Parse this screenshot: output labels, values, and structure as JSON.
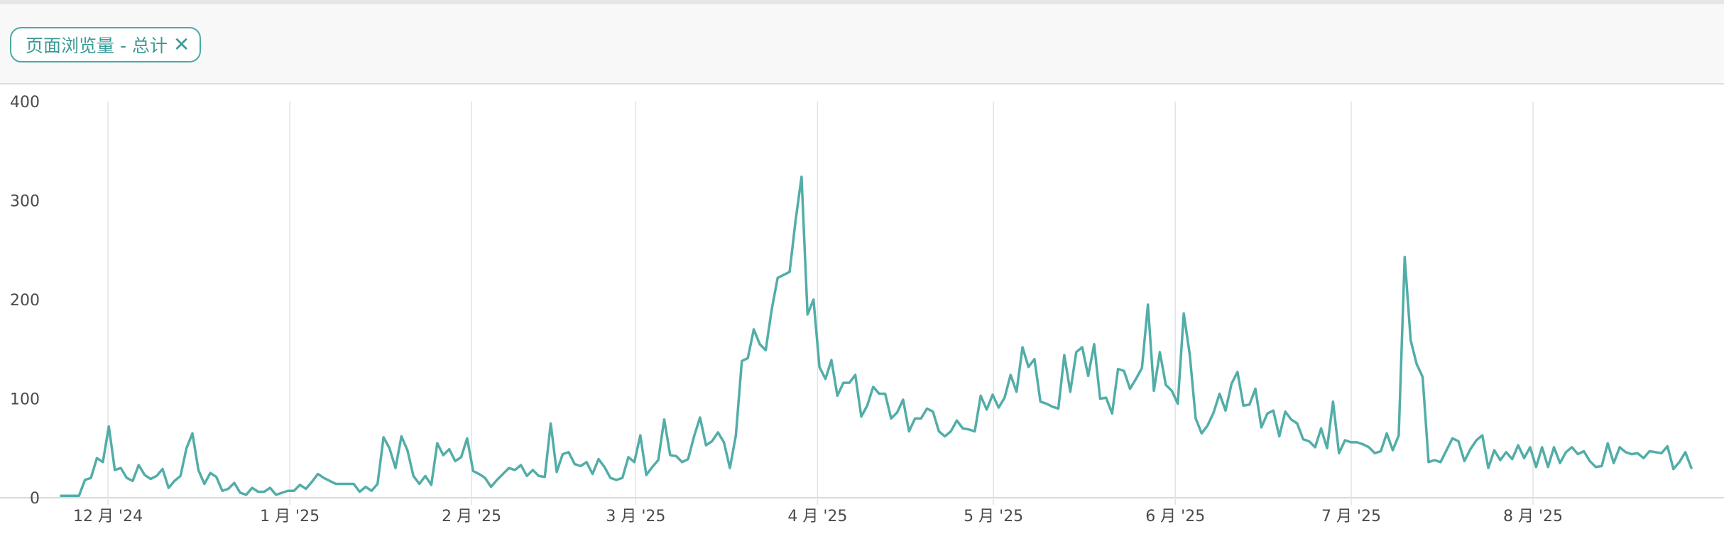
{
  "filter": {
    "label": "页面浏览量 - 总计",
    "close_icon": "close-icon"
  },
  "colors": {
    "line": "#52ada8",
    "grid": "#e3e3e6",
    "axis_text": "#4a4a4a",
    "chip": "#3b9a95"
  },
  "chart_data": {
    "type": "line",
    "title": "",
    "xlabel": "",
    "ylabel": "",
    "ylim": [
      0,
      400
    ],
    "yticks": [
      0,
      100,
      200,
      300,
      400
    ],
    "ytick_labels": [
      "0",
      "100",
      "200",
      "300",
      "400"
    ],
    "x_start": "2024-11-23",
    "x_end": "2025-08-28",
    "xtick_dates": [
      "2024-12-01",
      "2025-01-01",
      "2025-02-01",
      "2025-03-01",
      "2025-04-01",
      "2025-05-01",
      "2025-06-01",
      "2025-07-01",
      "2025-08-01"
    ],
    "xtick_labels": [
      "12 月 '24",
      "1 月 '25",
      "2 月 '25",
      "3 月 '25",
      "4 月 '25",
      "5 月 '25",
      "6 月 '25",
      "7 月 '25",
      "8 月 '25"
    ],
    "grid": "vertical at x ticks",
    "legend": "none",
    "series": [
      {
        "values": [
          2,
          2,
          2,
          2,
          18,
          20,
          40,
          36,
          72,
          28,
          30,
          20,
          17,
          33,
          23,
          19,
          22,
          29,
          10,
          17,
          22,
          50,
          65,
          28,
          14,
          25,
          21,
          7,
          9,
          15,
          5,
          3,
          10,
          6,
          6,
          10,
          3,
          5,
          7,
          7,
          13,
          9,
          16,
          24,
          20,
          17,
          14,
          14,
          14,
          14,
          6,
          11,
          7,
          14,
          61,
          50,
          30,
          62,
          48,
          22,
          14,
          22,
          13,
          55,
          43,
          49,
          37,
          41,
          60,
          27,
          24,
          20,
          11,
          18,
          24,
          30,
          28,
          33,
          22,
          28,
          22,
          21,
          75,
          26,
          44,
          46,
          34,
          32,
          36,
          24,
          39,
          31,
          20,
          18,
          20,
          41,
          36,
          63,
          23,
          31,
          38,
          79,
          43,
          42,
          36,
          39,
          62,
          81,
          53,
          57,
          66,
          56,
          30,
          63,
          138,
          141,
          170,
          155,
          149,
          190,
          222,
          225,
          228,
          280,
          324,
          185,
          200,
          132,
          120,
          139,
          103,
          116,
          116,
          124,
          82,
          93,
          112,
          105,
          105,
          80,
          86,
          99,
          67,
          80,
          80,
          90,
          87,
          67,
          62,
          67,
          78,
          70,
          69,
          67,
          103,
          89,
          104,
          91,
          101,
          124,
          107,
          152,
          132,
          140,
          97,
          95,
          92,
          90,
          144,
          107,
          147,
          152,
          123,
          155,
          100,
          101,
          85,
          130,
          128,
          110,
          120,
          131,
          195,
          108,
          147,
          114,
          108,
          95,
          186,
          145,
          80,
          65,
          73,
          86,
          105,
          88,
          115,
          127,
          93,
          94,
          110,
          71,
          85,
          88,
          62,
          87,
          79,
          75,
          59,
          57,
          51,
          70,
          50,
          97,
          45,
          58,
          56,
          56,
          54,
          51,
          45,
          47,
          65,
          48,
          63,
          243,
          159,
          135,
          122,
          36,
          38,
          36,
          48,
          60,
          57,
          37,
          49,
          58,
          63,
          30,
          48,
          38,
          46,
          39,
          53,
          40,
          51,
          31,
          51,
          31,
          51,
          35,
          46,
          51,
          44,
          47,
          37,
          31,
          32,
          55,
          35,
          51,
          46,
          44,
          45,
          40,
          47,
          46,
          45,
          52,
          29,
          36,
          46,
          30
        ]
      }
    ]
  }
}
